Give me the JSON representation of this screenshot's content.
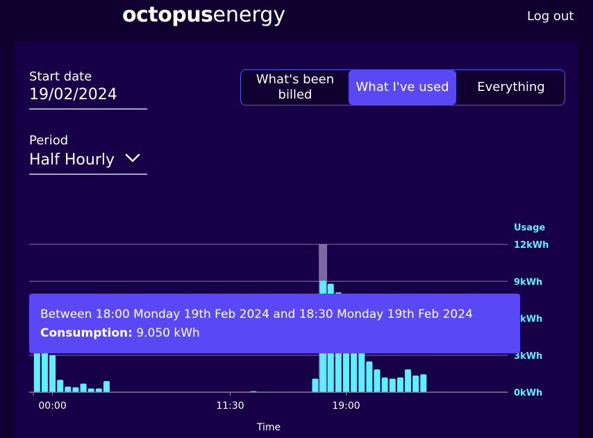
{
  "header": {
    "logo_primary": "octopus",
    "logo_secondary": "energy",
    "logout_label": "Log out"
  },
  "controls": {
    "start_date_label": "Start date",
    "start_date_value": "19/02/2024",
    "period_label": "Period",
    "period_value": "Half Hourly"
  },
  "view_toggle": {
    "options": [
      "What's been billed",
      "What I've used",
      "Everything"
    ],
    "selected": "What I've used"
  },
  "tooltip": {
    "range": "Between 18:00 Monday 19th Feb 2024 and 18:30 Monday 19th Feb 2024",
    "consumption_label": "Consumption:",
    "consumption_value": "9.050 kWh"
  },
  "colors": {
    "background": "#100030",
    "panel": "#180048",
    "accent": "#5a48f6",
    "bars": "#5cf0ff"
  },
  "chart_data": {
    "type": "bar",
    "y_axis_title": "Usage",
    "x_axis_title": "Time",
    "ylim": [
      0,
      12
    ],
    "y_ticks": [
      "0kWh",
      "3kWh",
      "6kWh",
      "9kWh",
      "12kWh"
    ],
    "x_ticks": [
      {
        "label": "00:00",
        "index": 2
      },
      {
        "label": "11:30",
        "index": 25
      },
      {
        "label": "19:00",
        "index": 40
      }
    ],
    "highlighted_index": 37,
    "values": [
      3.5,
      3.5,
      3.0,
      1.0,
      0.45,
      0.4,
      0.7,
      0.3,
      0.3,
      0.9,
      0,
      0,
      0,
      0,
      0,
      0,
      0,
      0,
      0,
      0,
      0,
      0,
      0,
      0,
      0,
      0,
      0,
      0,
      0.05,
      0,
      0,
      0,
      0,
      0,
      0,
      0,
      1.1,
      9.05,
      8.8,
      8.1,
      4.0,
      4.0,
      3.5,
      2.5,
      1.85,
      1.2,
      1.1,
      1.2,
      1.85,
      1.35,
      1.45
    ]
  }
}
